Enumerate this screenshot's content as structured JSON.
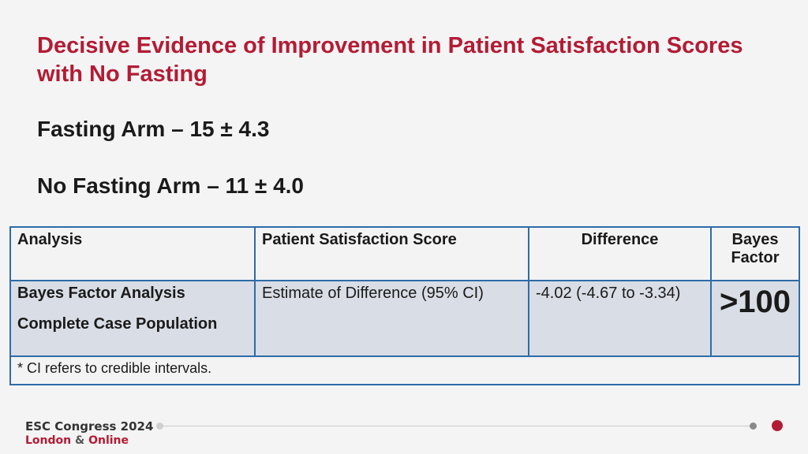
{
  "slide": {
    "title": "Decisive Evidence of Improvement in Patient Satisfaction Scores with No Fasting",
    "fasting_arm": "Fasting Arm – 15 ± 4.3",
    "no_fasting_arm": "No Fasting Arm – 11 ± 4.0"
  },
  "table": {
    "headers": [
      "Analysis",
      "Patient Satisfaction Score",
      "Difference",
      "Bayes Factor"
    ],
    "row": {
      "analysis_line1": "Bayes Factor Analysis",
      "analysis_line2": "Complete Case Population",
      "score": "Estimate of Difference (95% CI)",
      "difference": "-4.02 (-4.67 to -3.34)",
      "bayes_factor": ">100"
    },
    "footnote": "* CI refers to credible intervals."
  },
  "footer": {
    "logo_line1": "ESC Congress 2024",
    "logo_line2a": "London",
    "logo_amp": "&",
    "logo_line2b": "Online"
  },
  "colors": {
    "accent": "#b31b34",
    "table_border": "#2e6ca8",
    "row_fill": "#d9dde5"
  }
}
